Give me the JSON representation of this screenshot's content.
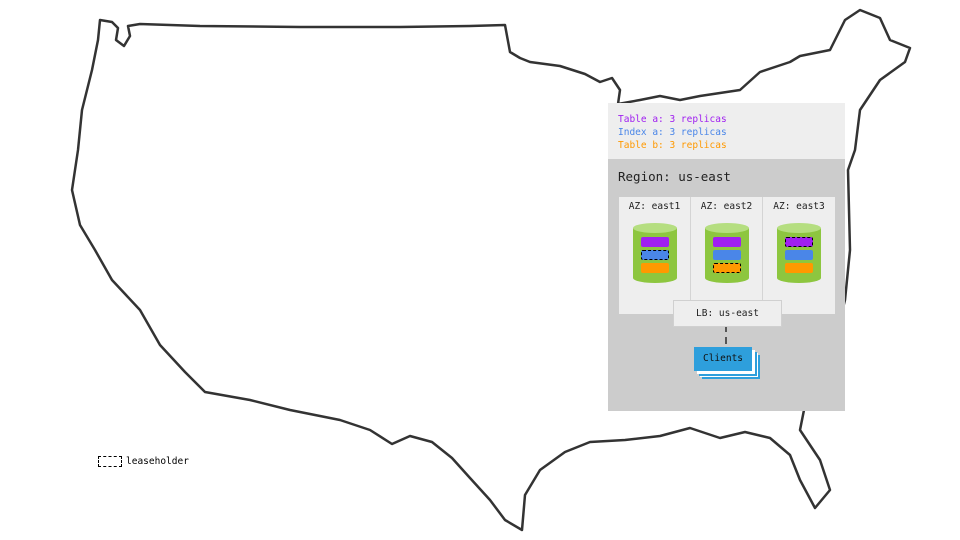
{
  "legend": {
    "items": [
      {
        "label": "Table a: 3 replicas",
        "color": "#a020f0"
      },
      {
        "label": "Index a: 3 replicas",
        "color": "#4a86e8"
      },
      {
        "label": "Table b: 3 replicas",
        "color": "#ff9900"
      }
    ]
  },
  "region": {
    "title": "Region: us-east",
    "azs": [
      {
        "label": "AZ: east1",
        "leaseholder": "Index a"
      },
      {
        "label": "AZ: east2",
        "leaseholder": "Table b"
      },
      {
        "label": "AZ: east3",
        "leaseholder": "Table a"
      }
    ],
    "lb": "LB: us-east",
    "clients": "Clients"
  },
  "leaseholder_legend": "leaseholder",
  "colors": {
    "cylinder": "#8dc63f",
    "cylinder_top": "#b5de80",
    "clients": "#2e9fdc"
  }
}
